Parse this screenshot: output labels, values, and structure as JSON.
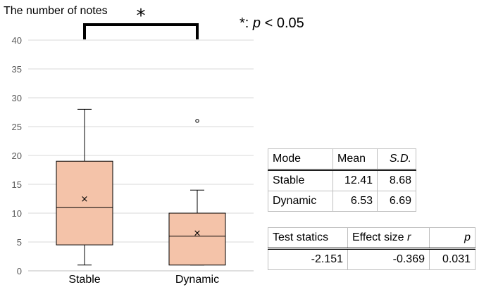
{
  "chart_data": {
    "type": "box",
    "ylabel": "The number of notes",
    "ylim": [
      0,
      40
    ],
    "yticks": [
      0,
      5,
      10,
      15,
      20,
      25,
      30,
      35,
      40
    ],
    "grid": true,
    "categories": [
      "Stable",
      "Dynamic"
    ],
    "boxes": [
      {
        "category": "Stable",
        "min": 1,
        "q1": 4.5,
        "median": 11,
        "q3": 19,
        "max": 28,
        "mean": 12.41,
        "outliers": []
      },
      {
        "category": "Dynamic",
        "min": 1,
        "q1": 1,
        "median": 6,
        "q3": 10,
        "max": 14,
        "mean": 6.53,
        "outliers": [
          26
        ]
      }
    ],
    "box_color": "#f4c3a9",
    "significance": {
      "marker": "*",
      "between": [
        "Stable",
        "Dynamic"
      ]
    },
    "significance_note": {
      "marker": "*",
      "text": ":",
      "p_label": "p",
      "condition": "< 0.05"
    }
  },
  "descriptive_table": {
    "headers": [
      "Mode",
      "Mean",
      "S.D."
    ],
    "rows": [
      [
        "Stable",
        "12.41",
        "8.68"
      ],
      [
        "Dynamic",
        "6.53",
        "6.69"
      ]
    ]
  },
  "test_table": {
    "headers": [
      "Test statics",
      "Effect size ",
      "p"
    ],
    "effect_symbol": "r",
    "values": [
      "-2.151",
      "-0.369",
      "0.031"
    ]
  }
}
